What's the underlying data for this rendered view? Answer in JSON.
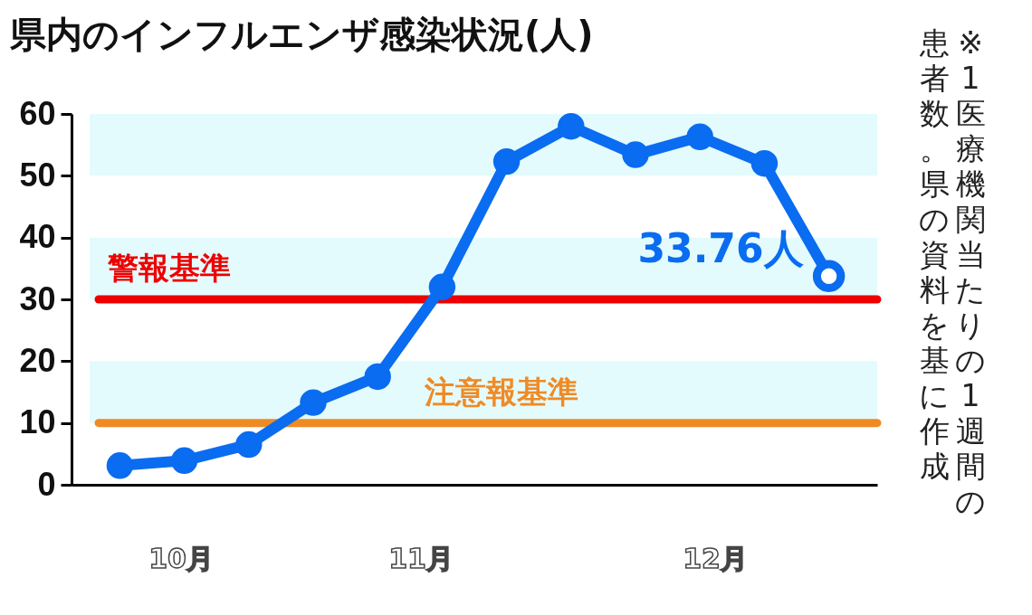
{
  "chart_data": {
    "type": "line",
    "title": "県内のインフルエンザ感染状況(人)",
    "categories": [
      null,
      null,
      null,
      null,
      null,
      null,
      null,
      null,
      null,
      null,
      null,
      null
    ],
    "series": [
      {
        "color": "#0a6cf0",
        "values": [
          3.1,
          3.9,
          6.5,
          13.3,
          17.5,
          32.0,
          52.3,
          58.0,
          53.4,
          56.3,
          52.0,
          33.76
        ],
        "value_labels": [
          null,
          null,
          null,
          null,
          null,
          null,
          null,
          null,
          null,
          null,
          null,
          "33.76人"
        ]
      }
    ],
    "ylim": [
      0,
      60
    ],
    "yticks": [
      0,
      10,
      20,
      30,
      40,
      50,
      60
    ],
    "tick_labels": "y",
    "marker": "circle",
    "ref_lines": [
      {
        "axis": "y",
        "value": 30,
        "label": "警報基準",
        "color": "#ee0000"
      },
      {
        "axis": "y",
        "value": 10,
        "label": "注意報基準",
        "color": "#f08a24"
      }
    ],
    "bands": [
      {
        "axis": "y",
        "from": 10,
        "to": 20,
        "color": "#e3fbfd"
      },
      {
        "axis": "y",
        "from": 30,
        "to": 40,
        "color": "#e3fbfd"
      },
      {
        "axis": "y",
        "from": 50,
        "to": 60,
        "color": "#e3fbfd"
      }
    ],
    "grid": false,
    "annotations": [
      "10月",
      "11月",
      "12月",
      "※1医療機関当たりの1週間の",
      "患者数。県の資料を基に作成"
    ]
  }
}
